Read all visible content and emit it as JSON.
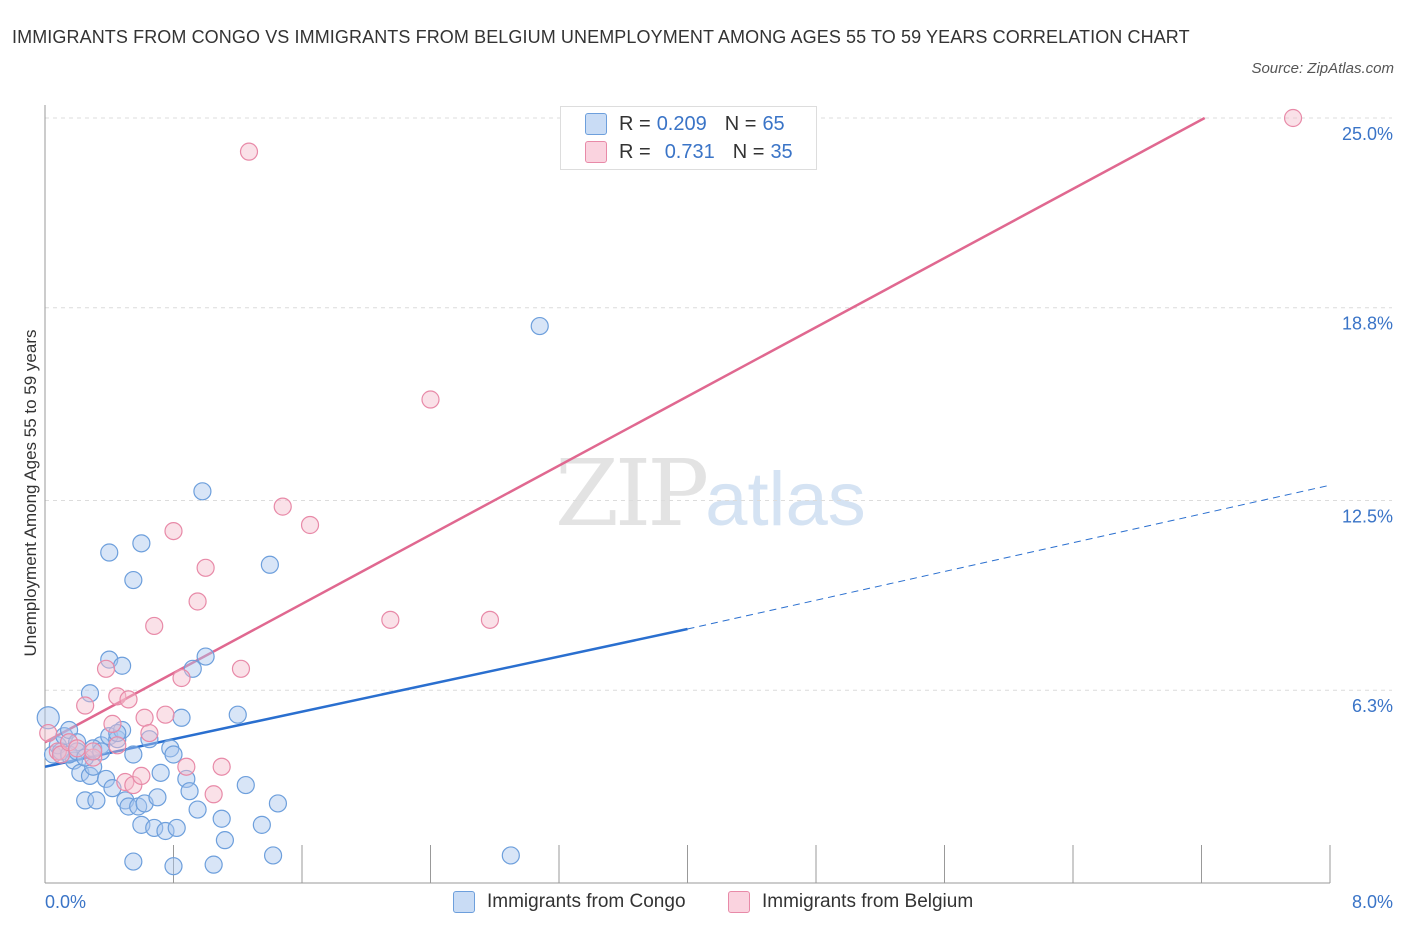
{
  "title": "IMMIGRANTS FROM CONGO VS IMMIGRANTS FROM BELGIUM UNEMPLOYMENT AMONG AGES 55 TO 59 YEARS CORRELATION CHART",
  "source": "Source: ZipAtlas.com",
  "watermark": {
    "zip": "ZIP",
    "atlas": "atlas"
  },
  "legend": {
    "rows": [
      {
        "r_label": "R =",
        "r_value": "0.209",
        "n_label": "N =",
        "n_value": "65",
        "color": "#a9c6ee"
      },
      {
        "r_label": "R =",
        "r_value": "0.731",
        "n_label": "N =",
        "n_value": "35",
        "color": "#f5bccd"
      }
    ]
  },
  "bottom_legend": [
    {
      "label": "Immigrants from Congo",
      "color": "#a9c6ee"
    },
    {
      "label": "Immigrants from Belgium",
      "color": "#f5bccd"
    }
  ],
  "chart_data": {
    "type": "scatter",
    "title": "IMMIGRANTS FROM CONGO VS IMMIGRANTS FROM BELGIUM UNEMPLOYMENT AMONG AGES 55 TO 59 YEARS CORRELATION CHART",
    "xlabel": "",
    "ylabel": "Unemployment Among Ages 55 to 59 years",
    "xlim": [
      0,
      8
    ],
    "ylim": [
      0,
      25
    ],
    "x_tick_labels": [
      "0.0%",
      "8.0%"
    ],
    "y_ticks": [
      6.3,
      12.5,
      18.8,
      25.0
    ],
    "y_tick_labels": [
      "6.3%",
      "12.5%",
      "18.8%",
      "25.0%"
    ],
    "grid": true,
    "series": [
      {
        "name": "Immigrants from Congo",
        "color": "#6d9fdc",
        "fill": "#a9c6ee",
        "points": [
          [
            0.02,
            5.4
          ],
          [
            0.05,
            4.2
          ],
          [
            0.08,
            4.5
          ],
          [
            0.1,
            4.3
          ],
          [
            0.12,
            4.8
          ],
          [
            0.15,
            5.0
          ],
          [
            0.18,
            4.0
          ],
          [
            0.2,
            4.6
          ],
          [
            0.22,
            3.6
          ],
          [
            0.25,
            2.7
          ],
          [
            0.28,
            3.5
          ],
          [
            0.3,
            3.8
          ],
          [
            0.28,
            6.2
          ],
          [
            0.32,
            2.7
          ],
          [
            0.35,
            4.5
          ],
          [
            0.38,
            3.4
          ],
          [
            0.4,
            4.8
          ],
          [
            0.4,
            7.3
          ],
          [
            0.42,
            3.1
          ],
          [
            0.45,
            4.7
          ],
          [
            0.48,
            5.0
          ],
          [
            0.5,
            2.7
          ],
          [
            0.52,
            2.5
          ],
          [
            0.55,
            4.2
          ],
          [
            0.55,
            0.7
          ],
          [
            0.58,
            2.5
          ],
          [
            0.6,
            1.9
          ],
          [
            0.62,
            2.6
          ],
          [
            0.65,
            4.7
          ],
          [
            0.68,
            1.8
          ],
          [
            0.7,
            2.8
          ],
          [
            0.72,
            3.6
          ],
          [
            0.75,
            1.7
          ],
          [
            0.78,
            4.4
          ],
          [
            0.8,
            4.2
          ],
          [
            0.82,
            1.8
          ],
          [
            0.85,
            5.4
          ],
          [
            0.88,
            3.4
          ],
          [
            0.9,
            3.0
          ],
          [
            0.92,
            7.0
          ],
          [
            0.95,
            2.4
          ],
          [
            0.98,
            12.8
          ],
          [
            1.0,
            7.4
          ],
          [
            1.05,
            0.6
          ],
          [
            1.1,
            2.1
          ],
          [
            1.12,
            1.4
          ],
          [
            1.2,
            5.5
          ],
          [
            1.25,
            3.2
          ],
          [
            1.35,
            1.9
          ],
          [
            1.4,
            10.4
          ],
          [
            1.42,
            0.9
          ],
          [
            1.45,
            2.6
          ],
          [
            0.4,
            10.8
          ],
          [
            0.6,
            11.1
          ],
          [
            0.55,
            9.9
          ],
          [
            0.48,
            7.1
          ],
          [
            0.15,
            4.2
          ],
          [
            0.2,
            4.3
          ],
          [
            0.25,
            4.1
          ],
          [
            0.3,
            4.4
          ],
          [
            0.35,
            4.3
          ],
          [
            0.8,
            0.55
          ],
          [
            2.9,
            0.9
          ],
          [
            3.08,
            18.2
          ],
          [
            0.45,
            4.9
          ]
        ]
      },
      {
        "name": "Immigrants from Belgium",
        "color": "#e88aa8",
        "fill": "#f5bccd",
        "points": [
          [
            0.02,
            4.9
          ],
          [
            0.08,
            4.3
          ],
          [
            0.1,
            4.2
          ],
          [
            0.15,
            4.6
          ],
          [
            0.2,
            4.4
          ],
          [
            0.25,
            5.8
          ],
          [
            0.3,
            4.1
          ],
          [
            0.38,
            7.0
          ],
          [
            0.42,
            5.2
          ],
          [
            0.45,
            6.1
          ],
          [
            0.5,
            3.3
          ],
          [
            0.52,
            6.0
          ],
          [
            0.55,
            3.2
          ],
          [
            0.6,
            3.5
          ],
          [
            0.62,
            5.4
          ],
          [
            0.65,
            4.9
          ],
          [
            0.68,
            8.4
          ],
          [
            0.75,
            5.5
          ],
          [
            0.8,
            11.5
          ],
          [
            0.85,
            6.7
          ],
          [
            0.88,
            3.8
          ],
          [
            0.95,
            9.2
          ],
          [
            1.0,
            10.3
          ],
          [
            1.05,
            2.9
          ],
          [
            1.1,
            3.8
          ],
          [
            1.22,
            7.0
          ],
          [
            1.27,
            23.9
          ],
          [
            1.48,
            12.3
          ],
          [
            1.65,
            11.7
          ],
          [
            2.15,
            8.6
          ],
          [
            2.4,
            15.8
          ],
          [
            2.77,
            8.6
          ],
          [
            7.77,
            25.0
          ],
          [
            0.3,
            4.3
          ],
          [
            0.45,
            4.5
          ]
        ]
      }
    ],
    "trend_lines": [
      {
        "series": "Immigrants from Congo",
        "x0": 0.0,
        "y0": 3.8,
        "x1": 4.0,
        "y1": 8.3,
        "dashed_to_x": 8.0,
        "dashed_to_y": 13.0
      },
      {
        "series": "Immigrants from Belgium",
        "x0": 0.0,
        "y0": 4.6,
        "x1": 7.22,
        "y1": 25.0
      }
    ]
  }
}
